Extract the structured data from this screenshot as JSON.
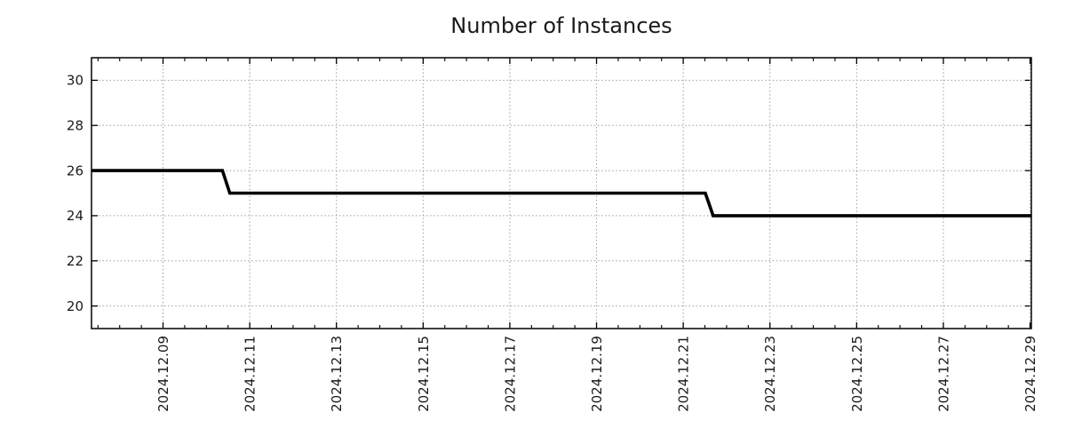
{
  "chart_data": {
    "type": "line",
    "title": "Number of Instances",
    "xlabel": "",
    "ylabel": "",
    "legend": "none",
    "grid": "dotted",
    "x_axis": {
      "tick_labels": [
        "2024.12.09",
        "2024.12.11",
        "2024.12.13",
        "2024.12.15",
        "2024.12.17",
        "2024.12.19",
        "2024.12.21",
        "2024.12.23",
        "2024.12.25",
        "2024.12.27",
        "2024.12.29"
      ],
      "tick_day_positions": [
        9,
        11,
        13,
        15,
        17,
        19,
        21,
        23,
        25,
        27,
        29
      ],
      "minor_tick_interval_days": 0.5,
      "domain_days": [
        7.35,
        29.03
      ]
    },
    "y_axis": {
      "ticks": [
        20,
        22,
        24,
        26,
        28,
        30
      ],
      "lim": [
        19,
        31
      ]
    },
    "series": [
      {
        "name": "Number of Instances",
        "color": "#000000",
        "line_width": 3.6,
        "points_day_value": [
          [
            7.35,
            26
          ],
          [
            10.37,
            26
          ],
          [
            10.54,
            25
          ],
          [
            21.51,
            25
          ],
          [
            21.69,
            24
          ],
          [
            29.03,
            24
          ]
        ],
        "summary": "26 instances from start until ~2024.12.10 midday, 25 until ~2024.12.21 midday, then 24 through 2024.12.29"
      }
    ]
  },
  "colors": {
    "background": "#ffffff",
    "grid": "#9e9e9e",
    "axis": "#000000",
    "text": "#1a1a1a",
    "series": "#000000"
  }
}
